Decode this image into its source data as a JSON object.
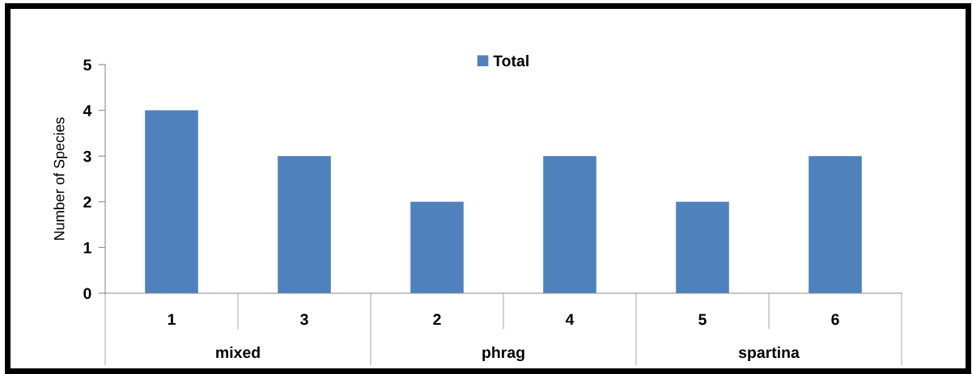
{
  "chart_data": {
    "type": "bar",
    "ylabel": "Number of Species",
    "categories": [
      "1",
      "3",
      "2",
      "4",
      "5",
      "6"
    ],
    "annotations": [
      "mixed",
      "phrag",
      "spartina"
    ],
    "series": [
      {
        "name": "Total",
        "color": "#4f81bd",
        "values": [
          4,
          3,
          2,
          3,
          2,
          3
        ]
      }
    ],
    "ylim": [
      0,
      5
    ],
    "yticks": [
      0,
      1,
      2,
      3,
      4,
      5
    ],
    "legend": "top"
  }
}
